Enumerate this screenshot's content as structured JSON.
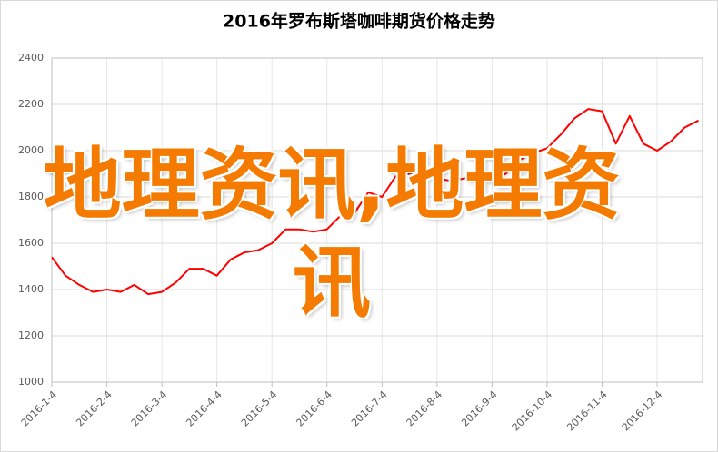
{
  "chart_data": {
    "type": "line",
    "title": "2016年罗布斯塔咖啡期货价格走势",
    "categories": [
      "2016-1-4",
      null,
      null,
      null,
      "2016-2-4",
      null,
      null,
      null,
      "2016-3-4",
      null,
      null,
      null,
      "2016-4-4",
      null,
      null,
      null,
      "2016-5-4",
      null,
      null,
      null,
      "2016-6-4",
      null,
      null,
      null,
      "2016-7-4",
      null,
      null,
      null,
      "2016-8-4",
      null,
      null,
      null,
      "2016-9-4",
      null,
      null,
      null,
      "2016-10-4",
      null,
      null,
      null,
      "2016-11-4",
      null,
      null,
      null,
      "2016-12-4",
      null,
      null,
      null
    ],
    "series": [
      {
        "color": "#ff0000",
        "values": [
          1540,
          1460,
          1420,
          1390,
          1400,
          1390,
          1420,
          1380,
          1390,
          1430,
          1490,
          1490,
          1460,
          1530,
          1560,
          1570,
          1600,
          1660,
          1660,
          1650,
          1660,
          1720,
          1730,
          1820,
          1800,
          1890,
          1900,
          1900,
          1880,
          1870,
          1880,
          1900,
          1880,
          1900,
          1960,
          1990,
          2010,
          2070,
          2140,
          2180,
          2170,
          2030,
          2150,
          2030,
          2000,
          2040,
          2100,
          2130
        ]
      }
    ],
    "ylim": [
      1000,
      2400
    ],
    "yticks": [
      1000,
      1200,
      1400,
      1600,
      1800,
      2000,
      2200,
      2400
    ],
    "grid": true
  },
  "watermark": "地理资讯,地理资讯"
}
